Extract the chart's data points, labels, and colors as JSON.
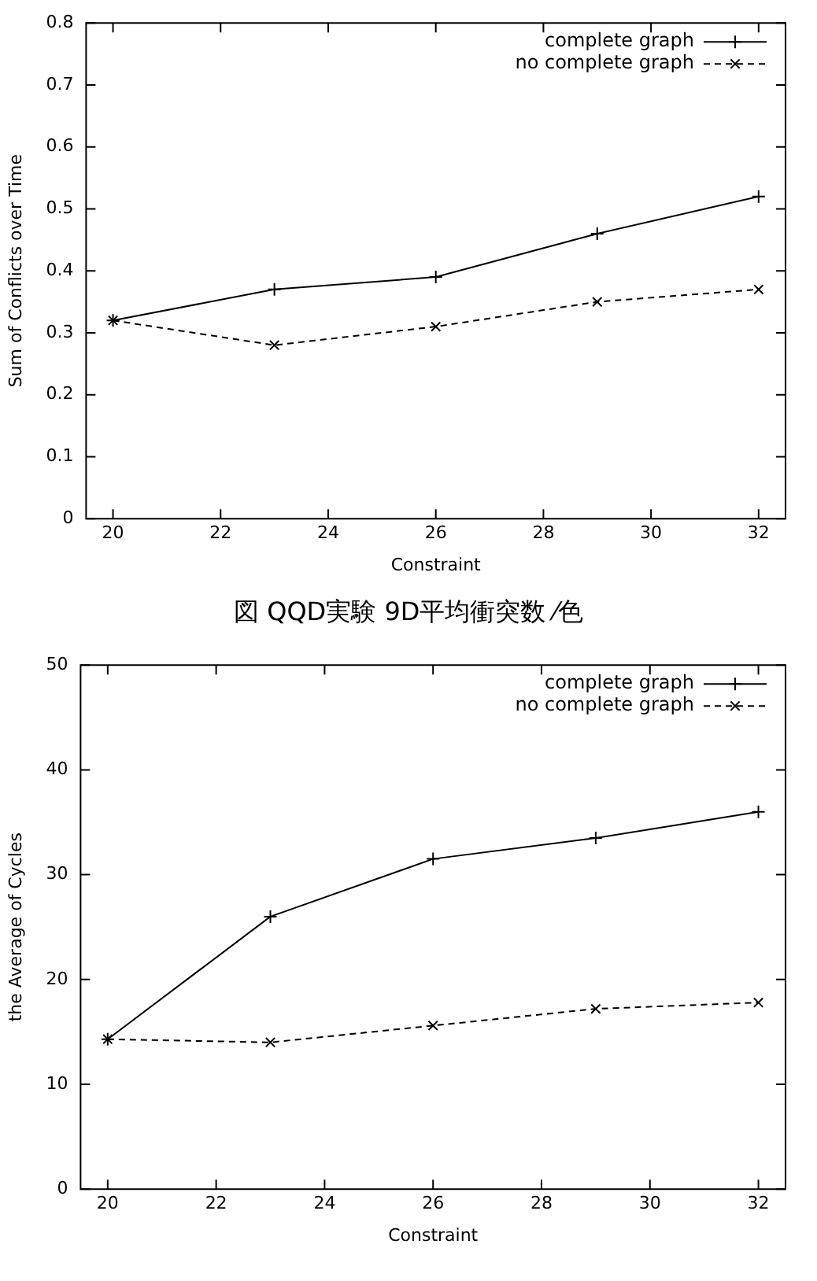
{
  "chart_data": [
    {
      "type": "line",
      "xlabel": "Constraint",
      "ylabel": "Sum of Conflicts over Time",
      "x": [
        20,
        23,
        26,
        29,
        32
      ],
      "series": [
        {
          "name": "complete graph",
          "color": "#000000",
          "values": [
            0.32,
            0.37,
            0.39,
            0.46,
            0.52
          ],
          "line_style": "solid",
          "marker": "cross"
        },
        {
          "name": "no complete graph",
          "color": "#000000",
          "values": [
            0.32,
            0.28,
            0.31,
            0.35,
            0.37
          ],
          "line_style": "dashed",
          "marker": "cross"
        }
      ],
      "xlim": [
        19.5,
        32.5
      ],
      "xticks": [
        20,
        22,
        24,
        26,
        28,
        30,
        32
      ],
      "ylim": [
        0,
        0.8
      ],
      "yticks": [
        0,
        0.1,
        0.2,
        0.3,
        0.4,
        0.5,
        0.6,
        0.7,
        0.8
      ],
      "legend": "top right",
      "annotations": [
        "図 QQD実験 9D平均衝突数 ⁄色"
      ]
    },
    {
      "type": "line",
      "xlabel": "Constraint",
      "ylabel": "the Average of Cycles",
      "x": [
        20,
        23,
        26,
        29,
        32
      ],
      "series": [
        {
          "name": "complete graph",
          "color": "#000000",
          "values": [
            14.3,
            26,
            31.5,
            33.5,
            36
          ],
          "line_style": "solid",
          "marker": "cross"
        },
        {
          "name": "no complete graph",
          "color": "#000000",
          "values": [
            14.3,
            14,
            15.6,
            17.2,
            17.8
          ],
          "line_style": "dashed",
          "marker": "cross"
        }
      ],
      "xlim": [
        19.5,
        32.5
      ],
      "xticks": [
        20,
        22,
        24,
        26,
        28,
        30,
        32
      ],
      "ylim": [
        0,
        50
      ],
      "yticks": [
        0,
        10,
        20,
        30,
        40,
        50
      ],
      "legend": "top right"
    }
  ]
}
